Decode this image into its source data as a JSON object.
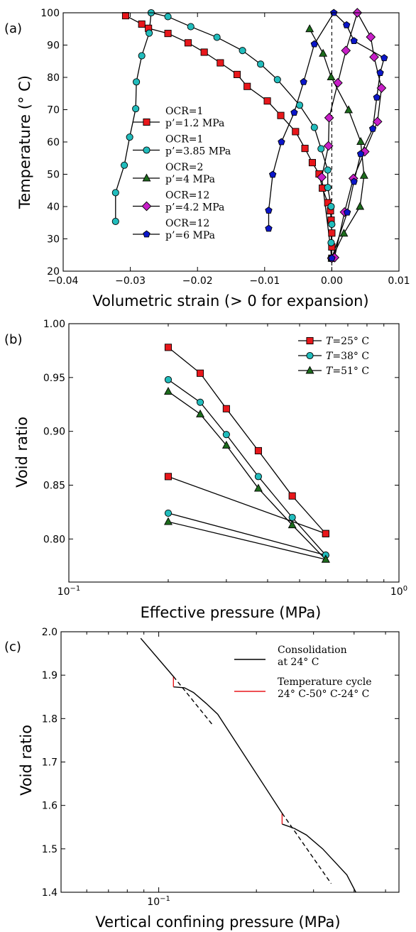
{
  "chart_data": [
    {
      "panel": "(a)",
      "type": "line",
      "xlabel": "Volumetric strain (> 0 for expansion)",
      "ylabel": "Temperature (° C)",
      "xlim": [
        -0.04,
        0.01
      ],
      "ylim": [
        20,
        100
      ],
      "xticks": [
        "−0.04",
        "−0.03",
        "−0.02",
        "−0.01",
        "0.00",
        "0.01"
      ],
      "yticks": [
        "20",
        "30",
        "40",
        "50",
        "60",
        "70",
        "80",
        "90",
        "100"
      ],
      "legend_position": "left-center",
      "reference_line": {
        "x": 0,
        "style": "dashed"
      },
      "series": [
        {
          "name_l1": "OCR=1",
          "name_l2": "p’=1.2 MPa",
          "marker": "square",
          "color": "#e8171b",
          "points": [
            [
              0.0,
              24
            ],
            [
              0.0,
              27.5
            ],
            [
              0.0,
              31.8
            ],
            [
              -0.0001,
              35.8
            ],
            [
              -0.0002,
              38.7
            ],
            [
              -0.0006,
              41.2
            ],
            [
              -0.0014,
              45.7
            ],
            [
              -0.0019,
              50.1
            ],
            [
              -0.0029,
              53.6
            ],
            [
              -0.004,
              58
            ],
            [
              -0.0054,
              63.2
            ],
            [
              -0.0076,
              68.2
            ],
            [
              -0.0096,
              72.7
            ],
            [
              -0.0126,
              77.2
            ],
            [
              -0.0141,
              80.9
            ],
            [
              -0.0166,
              84.5
            ],
            [
              -0.019,
              87.8
            ],
            [
              -0.0214,
              90.7
            ],
            [
              -0.0244,
              93.6
            ],
            [
              -0.0273,
              95.2
            ],
            [
              -0.0283,
              96.5
            ],
            [
              -0.0307,
              99.1
            ]
          ]
        },
        {
          "name_l1": "OCR=1",
          "name_l2": "p’=3.85 MPa",
          "marker": "circle",
          "color": "#21bcbc",
          "points": [
            [
              -0.0001,
              24
            ],
            [
              -0.0001,
              28.8
            ],
            [
              0.0,
              34.5
            ],
            [
              -0.0001,
              40.0
            ],
            [
              -0.0006,
              45.9
            ],
            [
              -0.0006,
              51.3
            ],
            [
              -0.0016,
              57.9
            ],
            [
              -0.0026,
              64.5
            ],
            [
              -0.0048,
              71.4
            ],
            [
              -0.0081,
              79.3
            ],
            [
              -0.0106,
              84.1
            ],
            [
              -0.0133,
              88.3
            ],
            [
              -0.0171,
              92.4
            ],
            [
              -0.021,
              95.7
            ],
            [
              -0.0244,
              98.8
            ],
            [
              -0.0269,
              100
            ],
            [
              -0.0272,
              93.7
            ],
            [
              -0.0283,
              86.7
            ],
            [
              -0.0291,
              78.6
            ],
            [
              -0.0292,
              70.3
            ],
            [
              -0.0301,
              61.5
            ],
            [
              -0.0309,
              52.8
            ],
            [
              -0.0322,
              44.3
            ],
            [
              -0.0322,
              35.4
            ]
          ]
        },
        {
          "name_l1": "OCR=2",
          "name_l2": "p’=4 MPa",
          "marker": "triangle",
          "color": "#1c6b1c",
          "points": [
            [
              0.0,
              24
            ],
            [
              0.0018,
              31.7
            ],
            [
              0.0042,
              40.0
            ],
            [
              0.0048,
              49.6
            ],
            [
              0.0043,
              60.1
            ],
            [
              0.0025,
              69.9
            ],
            [
              -0.0001,
              80.1
            ],
            [
              -0.0013,
              87.4
            ],
            [
              -0.0033,
              95
            ]
          ]
        },
        {
          "name_l1": "OCR=12",
          "name_l2": "p’=4.2 MPa",
          "marker": "diamond",
          "color": "#c71ec7",
          "points": [
            [
              0.0,
              24
            ],
            [
              -0.0015,
              49.1
            ],
            [
              -0.0005,
              58.8
            ],
            [
              -0.0004,
              67.5
            ],
            [
              0.0009,
              78.3
            ],
            [
              0.0021,
              88.3
            ],
            [
              0.0038,
              100
            ],
            [
              0.0058,
              92.5
            ],
            [
              0.0063,
              86.3
            ],
            [
              0.0074,
              76.7
            ],
            [
              0.0068,
              66.3
            ],
            [
              0.0049,
              57.0
            ],
            [
              0.0032,
              48.7
            ],
            [
              0.0019,
              38.3
            ],
            [
              0.0004,
              24.2
            ]
          ]
        },
        {
          "name_l1": "OCR=12",
          "name_l2": "p’=6 MPa",
          "marker": "pentagon",
          "color": "#0b16c9",
          "points": [
            [
              0.0,
              24
            ],
            [
              0.0023,
              38.2
            ],
            [
              0.0033,
              47.7
            ],
            [
              0.0043,
              56.3
            ],
            [
              0.0061,
              64.1
            ],
            [
              0.0067,
              73.8
            ],
            [
              0.0072,
              81.4
            ],
            [
              0.0078,
              86.0
            ],
            [
              0.0033,
              91.3
            ],
            [
              0.0022,
              96.2
            ],
            [
              0.0003,
              100
            ],
            [
              -0.0026,
              90.3
            ],
            [
              -0.0042,
              78.6
            ],
            [
              -0.0056,
              69.1
            ],
            [
              -0.0075,
              60.0
            ],
            [
              -0.0088,
              49.9
            ],
            [
              -0.0094,
              38.8
            ],
            [
              -0.0094,
              33.2
            ]
          ]
        }
      ]
    },
    {
      "panel": "(b)",
      "type": "line",
      "xscale": "log",
      "xlabel": "Effective pressure (MPa)",
      "ylabel": "Void ratio",
      "xlim": [
        0.1,
        1.0
      ],
      "ylim": [
        0.76,
        1.0
      ],
      "xtick_base": "10",
      "xtick_exps": [
        "−1",
        "0"
      ],
      "yticks": [
        "0.80",
        "0.85",
        "0.90",
        "0.95",
        "1.00"
      ],
      "legend_position": "top-right",
      "series": [
        {
          "name_var": "T",
          "name_val": "=25° C",
          "marker": "square",
          "color": "#e8171b",
          "segments": [
            [
              [
                0.2,
                0.978
              ],
              [
                0.25,
                0.954
              ],
              [
                0.3,
                0.921
              ],
              [
                0.375,
                0.882
              ],
              [
                0.475,
                0.84
              ],
              [
                0.6,
                0.805
              ]
            ],
            [
              [
                0.2,
                0.858
              ],
              [
                0.6,
                0.805
              ]
            ]
          ]
        },
        {
          "name_var": "T",
          "name_val": "=38° C",
          "marker": "circle",
          "color": "#21bcbc",
          "segments": [
            [
              [
                0.2,
                0.948
              ],
              [
                0.25,
                0.927
              ],
              [
                0.3,
                0.897
              ],
              [
                0.375,
                0.858
              ],
              [
                0.475,
                0.82
              ],
              [
                0.6,
                0.785
              ]
            ],
            [
              [
                0.2,
                0.824
              ],
              [
                0.6,
                0.785
              ]
            ]
          ]
        },
        {
          "name_var": "T",
          "name_val": "=51° C",
          "marker": "triangle",
          "color": "#1c6b1c",
          "segments": [
            [
              [
                0.2,
                0.937
              ],
              [
                0.25,
                0.916
              ],
              [
                0.3,
                0.887
              ],
              [
                0.375,
                0.847
              ],
              [
                0.475,
                0.813
              ],
              [
                0.6,
                0.781
              ]
            ],
            [
              [
                0.2,
                0.816
              ],
              [
                0.6,
                0.781
              ]
            ]
          ]
        }
      ]
    },
    {
      "panel": "(c)",
      "type": "line",
      "xscale": "log",
      "xlabel": "Vertical confining pressure (MPa)",
      "ylabel": "Void ratio",
      "xlim": [
        0.05,
        0.55
      ],
      "ylim": [
        1.4,
        2.0
      ],
      "xtick_base": "10",
      "xtick_exps": [
        "−1"
      ],
      "xtick_values": [
        0.1
      ],
      "yticks": [
        "1.4",
        "1.5",
        "1.6",
        "1.7",
        "1.8",
        "1.9",
        "2.0"
      ],
      "legend_position": "top-right",
      "series": [
        {
          "name_l1": "Consolidation",
          "name_l2": "at 24° C",
          "color": "#000000",
          "style": "solid",
          "segments": [
            [
              [
                0.088,
                1.985
              ],
              [
                0.111,
                1.897
              ]
            ],
            [
              [
                0.111,
                1.873
              ],
              [
                0.12,
                1.871
              ],
              [
                0.128,
                1.86
              ],
              [
                0.14,
                1.835
              ],
              [
                0.152,
                1.81
              ],
              [
                0.24,
                1.582
              ]
            ],
            [
              [
                0.24,
                1.557
              ],
              [
                0.262,
                1.547
              ],
              [
                0.285,
                1.532
              ],
              [
                0.32,
                1.5
              ],
              [
                0.38,
                1.44
              ],
              [
                0.405,
                1.4
              ]
            ]
          ]
        },
        {
          "name_l1": "Temperature cycle",
          "name_l2": "24° C-50° C-24° C",
          "color": "#e8171b",
          "style": "solid",
          "segments": [
            [
              [
                0.111,
                1.897
              ],
              [
                0.111,
                1.873
              ]
            ],
            [
              [
                0.24,
                1.582
              ],
              [
                0.24,
                1.557
              ]
            ]
          ]
        },
        {
          "name_l1": "",
          "name_l2": "",
          "color": "#000000",
          "style": "dashed",
          "segments": [
            [
              [
                0.111,
                1.897
              ],
              [
                0.146,
                1.787
              ]
            ],
            [
              [
                0.24,
                1.582
              ],
              [
                0.34,
                1.42
              ]
            ]
          ]
        }
      ]
    }
  ]
}
